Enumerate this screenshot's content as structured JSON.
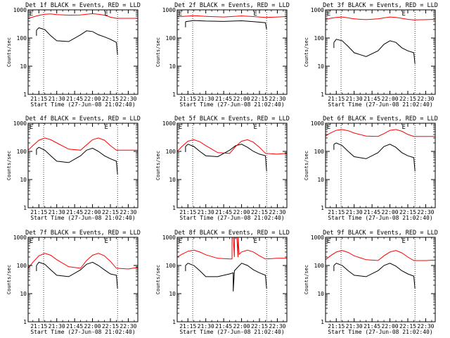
{
  "chart_data": [
    {
      "type": "line",
      "title": "Det 1f BLACK = Events, RED = LLD",
      "ylabel": "Counts/sec",
      "xlabel": "Start Time (27-Jun-08 21:02:40)",
      "yscale": "log",
      "ylim": [
        1,
        1000
      ],
      "y_ticks": [
        "1",
        "10",
        "100",
        "1000"
      ],
      "x_range": [
        "21:06",
        "22:38"
      ],
      "x_ticks": [
        "21:15",
        "21:30",
        "21:45",
        "22:00",
        "22:15",
        "22:30"
      ],
      "markers": [
        "E",
        "E"
      ],
      "marker_times": [
        "21:07",
        "22:10"
      ],
      "dotted_lines": [
        "21:19",
        "22:21"
      ],
      "series": [
        {
          "color": "#000000",
          "x": [
            "21:13",
            "21:15",
            "21:20",
            "21:25",
            "21:30",
            "21:40",
            "21:50",
            "21:55",
            "22:00",
            "22:05",
            "22:10",
            "22:15",
            "22:20",
            "22:21"
          ],
          "y": [
            190,
            230,
            200,
            120,
            80,
            75,
            130,
            180,
            170,
            130,
            110,
            90,
            70,
            25
          ]
        },
        {
          "color": "#ff0000",
          "x": [
            "21:06",
            "21:10",
            "21:15",
            "21:20",
            "21:25",
            "21:30",
            "21:40",
            "21:50",
            "21:55",
            "22:00",
            "22:05",
            "22:10",
            "22:15",
            "22:20",
            "22:30",
            "22:38"
          ],
          "y": [
            500,
            560,
            640,
            700,
            720,
            680,
            650,
            660,
            700,
            730,
            700,
            650,
            550,
            500,
            500,
            500
          ]
        }
      ]
    },
    {
      "type": "line",
      "title": "Det 2f BLACK = Events, RED = LLD",
      "ylabel": "Counts/sec",
      "xlabel": "Start Time (27-Jun-08 21:02:40)",
      "yscale": "log",
      "ylim": [
        1,
        1000
      ],
      "y_ticks": [
        "1",
        "10",
        "100",
        "1000"
      ],
      "x_range": [
        "21:06",
        "22:38"
      ],
      "x_ticks": [
        "21:15",
        "21:30",
        "21:45",
        "22:00",
        "22:15",
        "22:30"
      ],
      "markers": [
        "E",
        "E"
      ],
      "marker_times": [
        "21:07",
        "22:10"
      ],
      "dotted_lines": [
        "21:19",
        "22:21"
      ],
      "series": [
        {
          "color": "#000000",
          "x": [
            "21:13",
            "21:20",
            "21:30",
            "21:45",
            "22:00",
            "22:10",
            "22:20",
            "22:21"
          ],
          "y": [
            380,
            420,
            400,
            390,
            410,
            380,
            350,
            200
          ]
        },
        {
          "color": "#ff0000",
          "x": [
            "21:06",
            "21:15",
            "21:20",
            "21:30",
            "21:45",
            "22:00",
            "22:10",
            "22:20",
            "22:30",
            "22:38"
          ],
          "y": [
            570,
            600,
            620,
            590,
            560,
            610,
            580,
            540,
            560,
            580
          ]
        }
      ]
    },
    {
      "type": "line",
      "title": "Det 3f BLACK = Events, RED = LLD",
      "ylabel": "Counts/sec",
      "xlabel": "Start Time (27-Jun-08 21:02:40)",
      "yscale": "log",
      "ylim": [
        1,
        1000
      ],
      "y_ticks": [
        "1",
        "10",
        "100",
        "1000"
      ],
      "x_range": [
        "21:06",
        "22:38"
      ],
      "x_ticks": [
        "21:15",
        "21:30",
        "21:45",
        "22:00",
        "22:15",
        "22:30"
      ],
      "markers": [
        "E",
        "E"
      ],
      "marker_times": [
        "21:07",
        "22:10"
      ],
      "dotted_lines": [
        "21:19",
        "22:21"
      ],
      "series": [
        {
          "color": "#000000",
          "x": [
            "21:13",
            "21:15",
            "21:20",
            "21:25",
            "21:30",
            "21:40",
            "21:50",
            "21:55",
            "22:00",
            "22:05",
            "22:10",
            "22:15",
            "22:20",
            "22:21"
          ],
          "y": [
            70,
            90,
            80,
            50,
            30,
            22,
            35,
            60,
            80,
            70,
            45,
            35,
            30,
            12
          ]
        },
        {
          "color": "#ff0000",
          "x": [
            "21:06",
            "21:10",
            "21:15",
            "21:20",
            "21:25",
            "21:30",
            "21:40",
            "21:50",
            "21:55",
            "22:00",
            "22:05",
            "22:10",
            "22:15",
            "22:20",
            "22:30",
            "22:38"
          ],
          "y": [
            450,
            500,
            540,
            560,
            520,
            480,
            450,
            480,
            520,
            560,
            540,
            500,
            460,
            440,
            450,
            460
          ]
        }
      ]
    },
    {
      "type": "line",
      "title": "Det 4f BLACK = Events, RED = LLD",
      "ylabel": "Counts/sec",
      "xlabel": "Start Time (27-Jun-08 21:02:40)",
      "yscale": "log",
      "ylim": [
        1,
        1000
      ],
      "y_ticks": [
        "1",
        "10",
        "100",
        "1000"
      ],
      "x_range": [
        "21:06",
        "22:38"
      ],
      "x_ticks": [
        "21:15",
        "21:30",
        "21:45",
        "22:00",
        "22:15",
        "22:30"
      ],
      "markers": [
        "E",
        "E"
      ],
      "marker_times": [
        "21:07",
        "22:10"
      ],
      "dotted_lines": [
        "21:19",
        "22:21"
      ],
      "series": [
        {
          "color": "#000000",
          "x": [
            "21:13",
            "21:15",
            "21:20",
            "21:25",
            "21:30",
            "21:40",
            "21:50",
            "21:55",
            "22:00",
            "22:05",
            "22:10",
            "22:15",
            "22:20",
            "22:21"
          ],
          "y": [
            120,
            140,
            110,
            70,
            45,
            40,
            70,
            110,
            130,
            100,
            70,
            55,
            45,
            15
          ]
        },
        {
          "color": "#ff0000",
          "x": [
            "21:06",
            "21:10",
            "21:15",
            "21:20",
            "21:25",
            "21:30",
            "21:40",
            "21:50",
            "21:55",
            "22:00",
            "22:05",
            "22:10",
            "22:15",
            "22:20",
            "22:30",
            "22:38"
          ],
          "y": [
            110,
            160,
            250,
            300,
            260,
            200,
            120,
            110,
            170,
            260,
            300,
            250,
            160,
            110,
            110,
            110
          ]
        }
      ]
    },
    {
      "type": "line",
      "title": "Det 5f BLACK = Events, RED = LLD",
      "ylabel": "Counts/sec",
      "xlabel": "Start Time (27-Jun-08 21:02:40)",
      "yscale": "log",
      "ylim": [
        1,
        1000
      ],
      "y_ticks": [
        "1",
        "10",
        "100",
        "1000"
      ],
      "x_range": [
        "21:06",
        "22:38"
      ],
      "x_ticks": [
        "21:15",
        "21:30",
        "21:45",
        "22:00",
        "22:15",
        "22:30"
      ],
      "markers": [
        "E",
        "E"
      ],
      "marker_times": [
        "21:07",
        "22:10"
      ],
      "dotted_lines": [
        "21:19",
        "22:21"
      ],
      "series": [
        {
          "color": "#000000",
          "x": [
            "21:13",
            "21:15",
            "21:20",
            "21:25",
            "21:30",
            "21:40",
            "21:50",
            "21:55",
            "22:00",
            "22:05",
            "22:10",
            "22:15",
            "22:20",
            "22:21"
          ],
          "y": [
            150,
            180,
            150,
            100,
            70,
            65,
            110,
            160,
            180,
            140,
            100,
            80,
            70,
            20
          ]
        },
        {
          "color": "#ff0000",
          "x": [
            "21:06",
            "21:10",
            "21:15",
            "21:20",
            "21:25",
            "21:30",
            "21:40",
            "21:50",
            "21:55",
            "22:00",
            "22:05",
            "22:10",
            "22:15",
            "22:20",
            "22:30",
            "22:38"
          ],
          "y": [
            100,
            150,
            230,
            260,
            220,
            160,
            90,
            85,
            150,
            230,
            260,
            210,
            140,
            85,
            80,
            85
          ]
        }
      ]
    },
    {
      "type": "line",
      "title": "Det 6f BLACK = Events, RED = LLD",
      "ylabel": "Counts/sec",
      "xlabel": "Start Time (27-Jun-08 21:02:40)",
      "yscale": "log",
      "ylim": [
        1,
        1000
      ],
      "y_ticks": [
        "1",
        "10",
        "100",
        "1000"
      ],
      "x_range": [
        "21:06",
        "22:38"
      ],
      "x_ticks": [
        "21:15",
        "21:30",
        "21:45",
        "22:00",
        "22:15",
        "22:30"
      ],
      "markers": [
        "E",
        "E"
      ],
      "marker_times": [
        "21:07",
        "22:10"
      ],
      "dotted_lines": [
        "21:19",
        "22:21"
      ],
      "series": [
        {
          "color": "#000000",
          "x": [
            "21:13",
            "21:15",
            "21:20",
            "21:25",
            "21:30",
            "21:40",
            "21:50",
            "21:55",
            "22:00",
            "22:05",
            "22:10",
            "22:15",
            "22:20",
            "22:21"
          ],
          "y": [
            180,
            200,
            160,
            100,
            65,
            55,
            90,
            150,
            180,
            140,
            90,
            70,
            60,
            20
          ]
        },
        {
          "color": "#ff0000",
          "x": [
            "21:06",
            "21:10",
            "21:15",
            "21:20",
            "21:25",
            "21:30",
            "21:40",
            "21:50",
            "21:55",
            "22:00",
            "22:05",
            "22:10",
            "22:15",
            "22:20",
            "22:30",
            "22:38"
          ],
          "y": [
            350,
            450,
            560,
            600,
            540,
            450,
            350,
            340,
            430,
            560,
            600,
            520,
            400,
            340,
            340,
            340
          ]
        }
      ]
    },
    {
      "type": "line",
      "title": "Det 7f BLACK = Events, RED = LLD",
      "ylabel": "Counts/sec",
      "xlabel": "Start Time (27-Jun-08 21:02:40)",
      "yscale": "log",
      "ylim": [
        1,
        1000
      ],
      "y_ticks": [
        "1",
        "10",
        "100",
        "1000"
      ],
      "x_range": [
        "21:06",
        "22:38"
      ],
      "x_ticks": [
        "21:15",
        "21:30",
        "21:45",
        "22:00",
        "22:15",
        "22:30"
      ],
      "markers": [
        "E",
        "E"
      ],
      "marker_times": [
        "21:07",
        "22:10"
      ],
      "dotted_lines": [
        "21:19",
        "22:21"
      ],
      "series": [
        {
          "color": "#000000",
          "x": [
            "21:13",
            "21:15",
            "21:20",
            "21:25",
            "21:30",
            "21:40",
            "21:50",
            "21:55",
            "22:00",
            "22:05",
            "22:10",
            "22:15",
            "22:20",
            "22:21"
          ],
          "y": [
            100,
            130,
            110,
            70,
            45,
            40,
            70,
            110,
            130,
            100,
            70,
            50,
            45,
            15
          ]
        },
        {
          "color": "#ff0000",
          "x": [
            "21:06",
            "21:10",
            "21:15",
            "21:20",
            "21:25",
            "21:30",
            "21:40",
            "21:50",
            "21:55",
            "22:00",
            "22:05",
            "22:10",
            "22:15",
            "22:20",
            "22:30",
            "22:38"
          ],
          "y": [
            80,
            130,
            220,
            270,
            230,
            160,
            90,
            80,
            150,
            230,
            270,
            220,
            140,
            80,
            75,
            85
          ]
        }
      ]
    },
    {
      "type": "line",
      "title": "Det 8f BLACK = Events, RED = LLD",
      "ylabel": "Counts/sec",
      "xlabel": "Start Time (27-Jun-08 21:02:40)",
      "yscale": "log",
      "ylim": [
        1,
        1000
      ],
      "y_ticks": [
        "1",
        "10",
        "100",
        "1000"
      ],
      "x_range": [
        "21:06",
        "22:38"
      ],
      "x_ticks": [
        "21:15",
        "21:30",
        "21:45",
        "22:00",
        "22:15",
        "22:30"
      ],
      "markers": [
        "E",
        "E"
      ],
      "marker_times": [
        "21:07",
        "22:10"
      ],
      "dotted_lines": [
        "21:19",
        "22:21"
      ],
      "series": [
        {
          "color": "#000000",
          "x": [
            "21:13",
            "21:15",
            "21:20",
            "21:25",
            "21:30",
            "21:40",
            "21:50",
            "21:53",
            "21:53",
            "21:54",
            "21:56",
            "22:00",
            "22:05",
            "22:10",
            "22:15",
            "22:20",
            "22:21"
          ],
          "y": [
            100,
            120,
            100,
            65,
            40,
            40,
            50,
            55,
            12,
            65,
            80,
            120,
            100,
            70,
            55,
            45,
            15
          ]
        },
        {
          "color": "#ff0000",
          "x": [
            "21:06",
            "21:10",
            "21:15",
            "21:20",
            "21:25",
            "21:30",
            "21:40",
            "21:50",
            "21:52",
            "21:52",
            "21:53",
            "21:54",
            "21:54",
            "21:56",
            "21:57",
            "21:57",
            "21:58",
            "22:00",
            "22:05",
            "22:10",
            "22:15",
            "22:20",
            "22:30",
            "22:38"
          ],
          "y": [
            200,
            250,
            320,
            350,
            300,
            240,
            180,
            170,
            170,
            1000,
            1000,
            200,
            1000,
            1000,
            200,
            1000,
            250,
            300,
            350,
            300,
            220,
            170,
            180,
            180
          ]
        }
      ]
    },
    {
      "type": "line",
      "title": "Det 9f BLACK = Events, RED = LLD",
      "ylabel": "Counts/sec",
      "xlabel": "Start Time (27-Jun-08 21:02:40)",
      "yscale": "log",
      "ylim": [
        1,
        1000
      ],
      "y_ticks": [
        "1",
        "10",
        "100",
        "1000"
      ],
      "x_range": [
        "21:06",
        "22:38"
      ],
      "x_ticks": [
        "21:15",
        "21:30",
        "21:45",
        "22:00",
        "22:15",
        "22:30"
      ],
      "markers": [
        "E",
        "E"
      ],
      "marker_times": [
        "21:07",
        "22:10"
      ],
      "dotted_lines": [
        "21:19",
        "22:21"
      ],
      "series": [
        {
          "color": "#000000",
          "x": [
            "21:13",
            "21:15",
            "21:20",
            "21:25",
            "21:30",
            "21:40",
            "21:50",
            "21:55",
            "22:00",
            "22:05",
            "22:10",
            "22:15",
            "22:20",
            "22:21"
          ],
          "y": [
            100,
            120,
            100,
            65,
            45,
            40,
            65,
            100,
            120,
            95,
            65,
            50,
            42,
            15
          ]
        },
        {
          "color": "#ff0000",
          "x": [
            "21:06",
            "21:10",
            "21:15",
            "21:20",
            "21:25",
            "21:30",
            "21:40",
            "21:50",
            "21:55",
            "22:00",
            "22:05",
            "22:10",
            "22:15",
            "22:20",
            "22:30",
            "22:38"
          ],
          "y": [
            160,
            220,
            300,
            340,
            290,
            220,
            160,
            150,
            220,
            300,
            340,
            280,
            200,
            150,
            150,
            155
          ]
        }
      ]
    }
  ]
}
